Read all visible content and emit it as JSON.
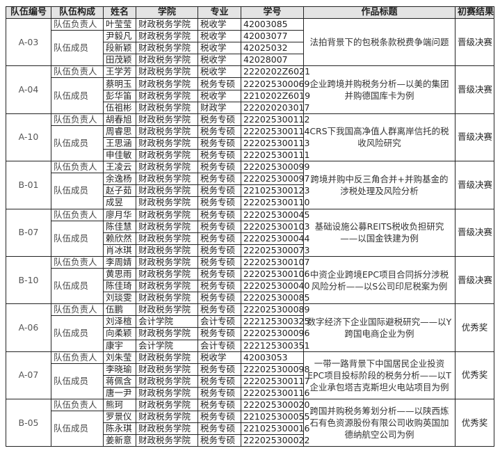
{
  "headers": [
    "队伍编号",
    "队伍构成",
    "姓名",
    "学院",
    "专业",
    "学号",
    "作品标题",
    "初赛结果"
  ],
  "roles": {
    "leader": "队伍负责人",
    "member": "队伍成员"
  },
  "teams": [
    {
      "id": "A-03",
      "title": "法拍背景下的包税条款税费争端问题",
      "result": "晋级决赛",
      "members": [
        {
          "name": "叶莹莹",
          "college": "财政税务学院",
          "major": "税收学",
          "sid": "42003085"
        },
        {
          "name": "尹毅凡",
          "college": "财政税务学院",
          "major": "税收学",
          "sid": "42003077"
        },
        {
          "name": "段新颖",
          "college": "财政税务学院",
          "major": "税收学",
          "sid": "42025032"
        },
        {
          "name": "田茂颖",
          "college": "财政税务学院",
          "major": "税收学",
          "sid": "42028007"
        }
      ]
    },
    {
      "id": "A-04",
      "title": "企业跨境并购税务分析—以美的集团并购德国库卡为例",
      "result": "晋级决赛",
      "members": [
        {
          "name": "王学芳",
          "college": "财政税务学院",
          "major": "税收学",
          "sid": "2220202Z6021"
        },
        {
          "name": "蔡明玉",
          "college": "财政税务学院",
          "major": "税务专硕",
          "sid": "222025300069"
        },
        {
          "name": "彭华笛",
          "college": "财政税务学院",
          "major": "税收学",
          "sid": "2210202Z6019"
        },
        {
          "name": "伍祖彬",
          "college": "财政税务学院",
          "major": "财政学",
          "sid": "222020203017"
        }
      ]
    },
    {
      "id": "A-10",
      "title": "CRS下我国高净值人群离岸信托的税收风险研究",
      "result": "晋级决赛",
      "members": [
        {
          "name": "胡春旭",
          "college": "财政税务学院",
          "major": "税务专硕",
          "sid": "222025300112"
        },
        {
          "name": "周睿思",
          "college": "财政税务学院",
          "major": "税务专硕",
          "sid": "222025300114"
        },
        {
          "name": "王思涵",
          "college": "财政税务学院",
          "major": "税务专硕",
          "sid": "222025300113"
        },
        {
          "name": "申佳敏",
          "college": "财政税务学院",
          "major": "税务专硕",
          "sid": "222025300111"
        }
      ]
    },
    {
      "id": "B-01",
      "title": "跨境并购中反三角合并+并购基金的涉税处理及风险分析",
      "result": "晋级决赛",
      "members": [
        {
          "name": "王凌云",
          "college": "财政税务学院",
          "major": "税务专硕",
          "sid": "222025300099"
        },
        {
          "name": "余逸杨",
          "college": "财政税务学院",
          "major": "税务专硕",
          "sid": "222025300097"
        },
        {
          "name": "赵子茹",
          "college": "财政税务学院",
          "major": "税务专硕",
          "sid": "221025300123"
        },
        {
          "name": "成昱",
          "college": "财政税务学院",
          "major": "税务专硕",
          "sid": "222025300110"
        }
      ]
    },
    {
      "id": "B-07",
      "title": "基础设施公募REITS税收负担研究——以国金铁建为例",
      "result": "晋级决赛",
      "members": [
        {
          "name": "廖月华",
          "college": "财政税务学院",
          "major": "税务专硕",
          "sid": "222025300045"
        },
        {
          "name": "陈佳慧",
          "college": "财政税务学院",
          "major": "税务专硕",
          "sid": "222025300103"
        },
        {
          "name": "赖欣然",
          "college": "财政税务学院",
          "major": "税务专硕",
          "sid": "222025300044"
        },
        {
          "name": "肖冰琪",
          "college": "财政税务学院",
          "major": "税务专硕",
          "sid": "222025300073"
        }
      ]
    },
    {
      "id": "B-10",
      "title": "中资企业跨境EPC项目合同拆分涉税风险分析——以S公司印尼税案为例",
      "result": "晋级决赛",
      "members": [
        {
          "name": "李周婧",
          "college": "财政税务学院",
          "major": "税务专硕",
          "sid": "222025300107"
        },
        {
          "name": "黄思雨",
          "college": "财政税务学院",
          "major": "税务专硕",
          "sid": "222025300106"
        },
        {
          "name": "陈佳琦",
          "college": "财政税务学院",
          "major": "税务专硕",
          "sid": "222025300040"
        },
        {
          "name": "刘琰雯",
          "college": "财政税务学院",
          "major": "税务专硕",
          "sid": "222025300085"
        }
      ]
    },
    {
      "id": "A-06",
      "title": "数字经济下企业国际避税研究——以Y跨国电商企业为例",
      "result": "优秀奖",
      "members": [
        {
          "name": "伍鹏",
          "college": "财政税务学院",
          "major": "税务专硕",
          "sid": "222025300089"
        },
        {
          "name": "刘泽楦",
          "college": "会计学院",
          "major": "会计专硕",
          "sid": "222125300325"
        },
        {
          "name": "向柔颖",
          "college": "财政税务学院",
          "major": "税务专硕",
          "sid": "222025300096"
        },
        {
          "name": "康宇",
          "college": "会计学院",
          "major": "会计专硕",
          "sid": "222125300351"
        }
      ]
    },
    {
      "id": "A-07",
      "title": "一带一路背景下中国居民企业投资EPC项目投标阶段的税务分析——以T企业承包塔吉克斯坦火电站项目为例",
      "result": "优秀奖",
      "members": [
        {
          "name": "刘朱莹",
          "college": "财政税务学院",
          "major": "税收学",
          "sid": "42003053"
        },
        {
          "name": "李晓瑜",
          "college": "财政税务学院",
          "major": "税务专硕",
          "sid": "222025300098"
        },
        {
          "name": "蒋佩含",
          "college": "财政税务学院",
          "major": "税务专硕",
          "sid": "222025300117"
        },
        {
          "name": "唐一尹",
          "college": "财政税务学院",
          "major": "税务专硕",
          "sid": "222025300116"
        }
      ]
    },
    {
      "id": "B-05",
      "title": "跨国并购税务筹划分析——以陕西炼石有色资源股份有限公司收购英国加德纳航空公司为例",
      "result": "优秀奖",
      "members": [
        {
          "name": "熊珂",
          "college": "财政税务学院",
          "major": "税务专硕",
          "sid": "222025300020"
        },
        {
          "name": "罗景仪",
          "college": "财政税务学院",
          "major": "税务专硕",
          "sid": "221025300055"
        },
        {
          "name": "陈永琪",
          "college": "财政税务学院",
          "major": "税务专硕",
          "sid": "221025300016"
        },
        {
          "name": "姜新意",
          "college": "财政税务学院",
          "major": "税务专硕",
          "sid": "222025300022"
        }
      ]
    }
  ]
}
